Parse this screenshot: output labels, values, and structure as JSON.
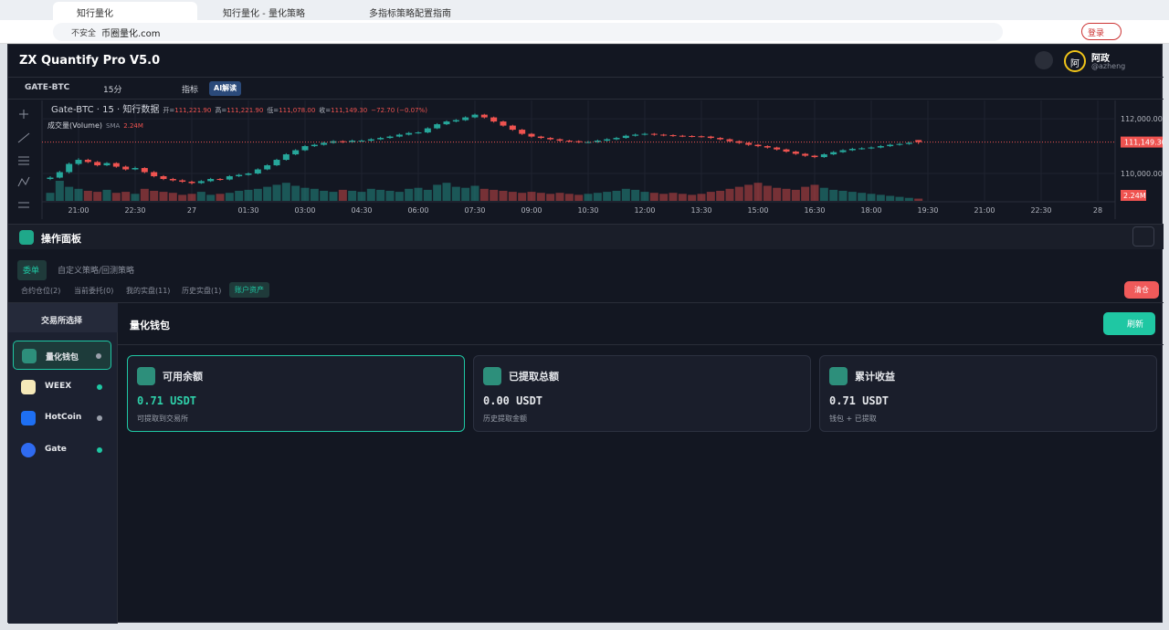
{
  "browser": {
    "tabs": [
      "知行量化",
      "知行量化 - 量化策略",
      "多指标策略配置指南"
    ],
    "security": "不安全",
    "url": "币圈量化.com",
    "login": "登录"
  },
  "app": {
    "title": "ZX Quantify Pro V5.0",
    "user": {
      "avatar": "阿",
      "name": "阿政",
      "handle": "@azheng"
    }
  },
  "toolbar": {
    "symbol": "GATE-BTC",
    "interval": "15分",
    "indicators": "指标",
    "ai": "AI解读"
  },
  "chart_data": {
    "type": "candlestick",
    "title": "Gate-BTC · 15 · 知行数据",
    "ohlc": [
      {
        "label": "开=",
        "value": "111,221.90"
      },
      {
        "label": "高=",
        "value": "111,221.90"
      },
      {
        "label": "低=",
        "value": "111,078.00"
      },
      {
        "label": "收=",
        "value": "111,149.30"
      }
    ],
    "change": "−72.70 (−0.07%)",
    "volume_title": "成交量(Volume)",
    "volume_ma": "SMA",
    "volume_ma_value": "2.24M",
    "colors": {
      "up": "#26a69a",
      "down": "#ef5350"
    },
    "ylim": [
      109000,
      112570
    ],
    "yticks": [
      {
        "value": 112000,
        "label": "112,000.00"
      },
      {
        "value": 110000,
        "label": "110,000.00"
      }
    ],
    "xticks": [
      "21:00",
      "22:30",
      "27",
      "01:30",
      "03:00",
      "04:30",
      "06:00",
      "07:30",
      "09:00",
      "10:30",
      "12:00",
      "13:30",
      "15:00",
      "16:30",
      "18:00",
      "19:30",
      "21:00",
      "22:30",
      "28"
    ],
    "last_price_label": "111,149.30",
    "volume_label": "2.24M",
    "candles": [
      [
        109800,
        109900,
        109760,
        109850
      ],
      [
        109850,
        110100,
        109820,
        110050
      ],
      [
        110050,
        110400,
        110000,
        110350
      ],
      [
        110350,
        110560,
        110300,
        110500
      ],
      [
        110500,
        110540,
        110380,
        110420
      ],
      [
        110420,
        110460,
        110260,
        110300
      ],
      [
        110300,
        110420,
        110270,
        110380
      ],
      [
        110380,
        110410,
        110210,
        110250
      ],
      [
        110250,
        110290,
        110110,
        110150
      ],
      [
        110150,
        110250,
        110120,
        110200
      ],
      [
        110200,
        110230,
        110010,
        110050
      ],
      [
        110050,
        110090,
        109860,
        109900
      ],
      [
        109900,
        109940,
        109760,
        109800
      ],
      [
        109800,
        109840,
        109710,
        109750
      ],
      [
        109750,
        109790,
        109660,
        109700
      ],
      [
        109700,
        109740,
        109600,
        109650
      ],
      [
        109650,
        109760,
        109620,
        109720
      ],
      [
        109720,
        109840,
        109690,
        109800
      ],
      [
        109800,
        109830,
        109740,
        109780
      ],
      [
        109780,
        109940,
        109750,
        109900
      ],
      [
        109900,
        109990,
        109870,
        109950
      ],
      [
        109950,
        110040,
        109920,
        110000
      ],
      [
        110000,
        110190,
        109970,
        110150
      ],
      [
        110150,
        110340,
        110120,
        110300
      ],
      [
        110300,
        110540,
        110270,
        110500
      ],
      [
        110500,
        110740,
        110470,
        110700
      ],
      [
        110700,
        110890,
        110670,
        110850
      ],
      [
        110850,
        111040,
        110820,
        111000
      ],
      [
        111000,
        111090,
        110970,
        111050
      ],
      [
        111050,
        111160,
        111020,
        111120
      ],
      [
        111120,
        111220,
        111090,
        111180
      ],
      [
        111180,
        111210,
        111110,
        111150
      ],
      [
        111150,
        111240,
        111120,
        111200
      ],
      [
        111200,
        111240,
        111160,
        111200
      ],
      [
        111200,
        111290,
        111170,
        111250
      ],
      [
        111250,
        111340,
        111220,
        111300
      ],
      [
        111300,
        111390,
        111270,
        111350
      ],
      [
        111350,
        111460,
        111320,
        111420
      ],
      [
        111420,
        111520,
        111390,
        111480
      ],
      [
        111480,
        111540,
        111450,
        111500
      ],
      [
        111500,
        111690,
        111470,
        111650
      ],
      [
        111650,
        111840,
        111620,
        111800
      ],
      [
        111800,
        111940,
        111770,
        111900
      ],
      [
        111900,
        111990,
        111870,
        111950
      ],
      [
        111950,
        112090,
        111920,
        112050
      ],
      [
        112050,
        112190,
        112020,
        112150
      ],
      [
        112150,
        112180,
        112010,
        112050
      ],
      [
        112050,
        112080,
        111860,
        111900
      ],
      [
        111900,
        111930,
        111710,
        111750
      ],
      [
        111750,
        111780,
        111560,
        111600
      ],
      [
        111600,
        111630,
        111410,
        111450
      ],
      [
        111450,
        111480,
        111310,
        111350
      ],
      [
        111350,
        111380,
        111260,
        111300
      ],
      [
        111300,
        111330,
        111210,
        111250
      ],
      [
        111250,
        111280,
        111160,
        111200
      ],
      [
        111200,
        111230,
        111140,
        111180
      ],
      [
        111180,
        111210,
        111110,
        111150
      ],
      [
        111150,
        111190,
        111110,
        111150
      ],
      [
        111150,
        111240,
        111120,
        111200
      ],
      [
        111200,
        111290,
        111170,
        111250
      ],
      [
        111250,
        111340,
        111220,
        111300
      ],
      [
        111300,
        111420,
        111270,
        111380
      ],
      [
        111380,
        111460,
        111350,
        111420
      ],
      [
        111420,
        111490,
        111390,
        111450
      ],
      [
        111450,
        111480,
        111380,
        111420
      ],
      [
        111420,
        111450,
        111360,
        111400
      ],
      [
        111400,
        111430,
        111340,
        111380
      ],
      [
        111380,
        111410,
        111330,
        111370
      ],
      [
        111370,
        111400,
        111320,
        111360
      ],
      [
        111360,
        111390,
        111310,
        111350
      ],
      [
        111350,
        111380,
        111260,
        111300
      ],
      [
        111300,
        111330,
        111210,
        111250
      ],
      [
        111250,
        111280,
        111140,
        111180
      ],
      [
        111180,
        111210,
        111080,
        111120
      ],
      [
        111120,
        111150,
        111010,
        111050
      ],
      [
        111050,
        111080,
        110960,
        111000
      ],
      [
        111000,
        111030,
        110910,
        110950
      ],
      [
        110950,
        110980,
        110840,
        110880
      ],
      [
        110880,
        110910,
        110760,
        110800
      ],
      [
        110800,
        110830,
        110680,
        110720
      ],
      [
        110720,
        110750,
        110610,
        110650
      ],
      [
        110650,
        110680,
        110560,
        110600
      ],
      [
        110600,
        110740,
        110570,
        110700
      ],
      [
        110700,
        110820,
        110670,
        110780
      ],
      [
        110780,
        110890,
        110750,
        110850
      ],
      [
        110850,
        110940,
        110820,
        110900
      ],
      [
        110900,
        110960,
        110870,
        110920
      ],
      [
        110920,
        110990,
        110890,
        110950
      ],
      [
        110950,
        111040,
        110920,
        111000
      ],
      [
        111000,
        111090,
        110970,
        111050
      ],
      [
        111050,
        111120,
        111020,
        111080
      ],
      [
        111080,
        111160,
        111050,
        111120
      ],
      [
        111221.9,
        111221.9,
        111078,
        111149.3
      ]
    ],
    "volume": [
      8000000,
      20000000,
      14000000,
      12000000,
      10000000,
      9000000,
      11000000,
      8000000,
      9000000,
      7000000,
      12000000,
      10000000,
      9000000,
      8000000,
      6000000,
      7000000,
      9000000,
      6000000,
      7000000,
      8000000,
      10000000,
      11000000,
      12000000,
      14000000,
      16000000,
      18000000,
      15000000,
      13000000,
      12000000,
      10000000,
      9000000,
      11000000,
      10000000,
      9000000,
      12000000,
      11000000,
      10000000,
      9000000,
      12000000,
      13000000,
      11000000,
      16000000,
      18000000,
      14000000,
      13000000,
      15000000,
      12000000,
      11000000,
      10000000,
      9000000,
      8000000,
      9000000,
      8000000,
      7000000,
      8000000,
      7000000,
      6000000,
      7000000,
      8000000,
      9000000,
      10000000,
      12000000,
      11000000,
      9000000,
      8000000,
      7000000,
      8000000,
      7000000,
      6000000,
      7000000,
      9000000,
      10000000,
      12000000,
      14000000,
      16000000,
      18000000,
      15000000,
      13000000,
      12000000,
      11000000,
      14000000,
      16000000,
      13000000,
      11000000,
      10000000,
      9000000,
      8000000,
      7000000,
      6000000,
      5000000,
      4000000,
      3000000,
      2240000
    ]
  },
  "panel": {
    "title": "操作面板",
    "tabs": [
      "委单",
      "自定义策略/回测策略"
    ],
    "subtabs": [
      "合约仓位(2)",
      "当前委托(0)",
      "我的实盘(11)",
      "历史实盘(1)",
      "账户资产"
    ],
    "clear": "清仓",
    "sidebar": {
      "title": "交易所选择",
      "items": [
        "量化钱包",
        "WEEX",
        "HotCoin",
        "Gate"
      ]
    },
    "main": {
      "title": "量化钱包",
      "refresh": "刷新",
      "cards": [
        {
          "title": "可用余额",
          "value": "0.71 USDT",
          "note": "可提取到交易所"
        },
        {
          "title": "已提取总额",
          "value": "0.00 USDT",
          "note": "历史提取金额"
        },
        {
          "title": "累计收益",
          "value": "0.71 USDT",
          "note": "钱包 + 已提取"
        }
      ]
    }
  }
}
